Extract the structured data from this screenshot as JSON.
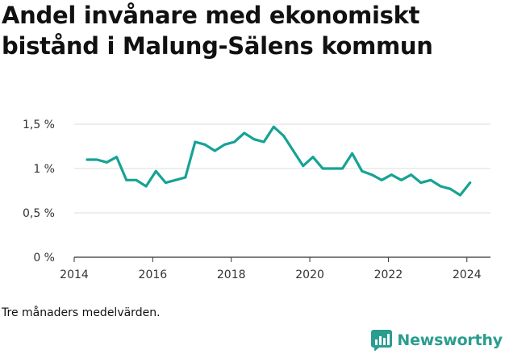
{
  "title": "Andel invånare med ekonomiskt bistånd i Malung-Sälens kommun",
  "caption": "Tre månaders medelvärden.",
  "brand": {
    "name": "Newsworthy",
    "color": "#2a9d8f",
    "icon": "newsworthy-logo-icon"
  },
  "colors": {
    "line": "#16a394",
    "grid": "#dddddd",
    "axis": "#333333"
  },
  "chart_data": {
    "type": "line",
    "title": "Andel invånare med ekonomiskt bistånd i Malung-Sälens kommun",
    "xlabel": "",
    "ylabel": "",
    "xlim": [
      2014,
      2024.6
    ],
    "ylim": [
      0,
      1.5
    ],
    "grid": true,
    "x_ticks": [
      2014,
      2016,
      2018,
      2020,
      2022,
      2024
    ],
    "x_tick_labels": [
      "2014",
      "2016",
      "2018",
      "2020",
      "2022",
      "2024"
    ],
    "y_ticks": [
      0,
      0.5,
      1,
      1.5
    ],
    "y_tick_labels": [
      "0 %",
      "0,5 %",
      "1 %",
      "1,5 %"
    ],
    "series": [
      {
        "x": [
          2014.33,
          2014.58,
          2014.83,
          2015.08,
          2015.33,
          2015.58,
          2015.83,
          2016.08,
          2016.33,
          2016.58,
          2016.83,
          2017.08,
          2017.33,
          2017.58,
          2017.83,
          2018.08,
          2018.33,
          2018.58,
          2018.83,
          2019.08,
          2019.33,
          2019.58,
          2019.83,
          2020.08,
          2020.33,
          2020.58,
          2020.83,
          2021.08,
          2021.33,
          2021.58,
          2021.83,
          2022.08,
          2022.33,
          2022.58,
          2022.83,
          2023.08,
          2023.33,
          2023.58,
          2023.83,
          2024.08
        ],
        "values": [
          1.1,
          1.1,
          1.07,
          1.13,
          0.87,
          0.87,
          0.8,
          0.97,
          0.84,
          0.87,
          0.9,
          1.3,
          1.27,
          1.2,
          1.27,
          1.3,
          1.4,
          1.33,
          1.3,
          1.47,
          1.37,
          1.2,
          1.03,
          1.13,
          1.0,
          1.0,
          1.0,
          1.17,
          0.97,
          0.93,
          0.87,
          0.93,
          0.87,
          0.93,
          0.84,
          0.87,
          0.8,
          0.77,
          0.7,
          0.84
        ]
      }
    ]
  }
}
